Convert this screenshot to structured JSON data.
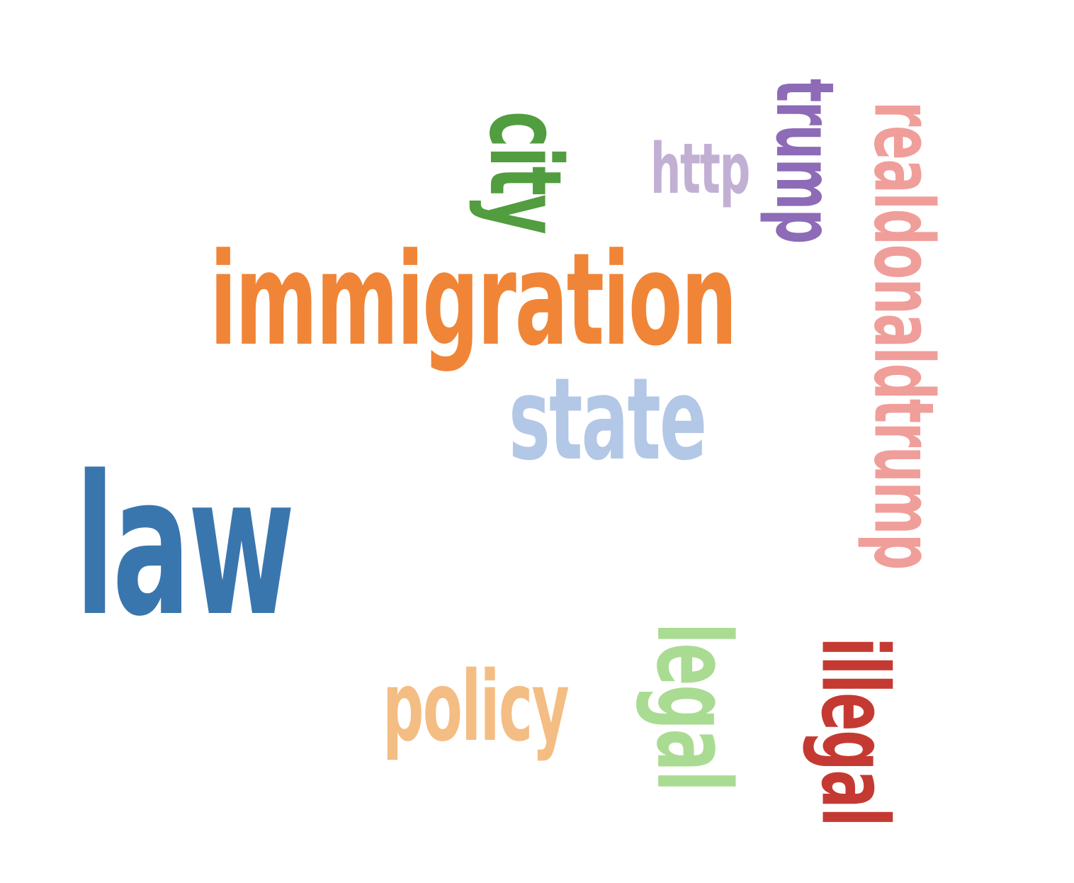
{
  "words": {
    "law": {
      "text": "law",
      "color": "#3a76ae",
      "orientation": "horizontal"
    },
    "immigration": {
      "text": "immigration",
      "color": "#f08537",
      "orientation": "horizontal"
    },
    "state": {
      "text": "state",
      "color": "#b3c7e6",
      "orientation": "horizontal"
    },
    "policy": {
      "text": "policy",
      "color": "#f4bd83",
      "orientation": "horizontal"
    },
    "http": {
      "text": "http",
      "color": "#c2b0d4",
      "orientation": "horizontal"
    },
    "city": {
      "text": "city",
      "color": "#529d3f",
      "orientation": "vertical"
    },
    "trump": {
      "text": "trump",
      "color": "#8d6bb7",
      "orientation": "vertical"
    },
    "realdonaldtrump": {
      "text": "realdonaldtrump",
      "color": "#f09e9a",
      "orientation": "vertical"
    },
    "legal": {
      "text": "legal",
      "color": "#a9dc92",
      "orientation": "vertical"
    },
    "illegal": {
      "text": "illegal",
      "color": "#c43a32",
      "orientation": "vertical"
    }
  }
}
